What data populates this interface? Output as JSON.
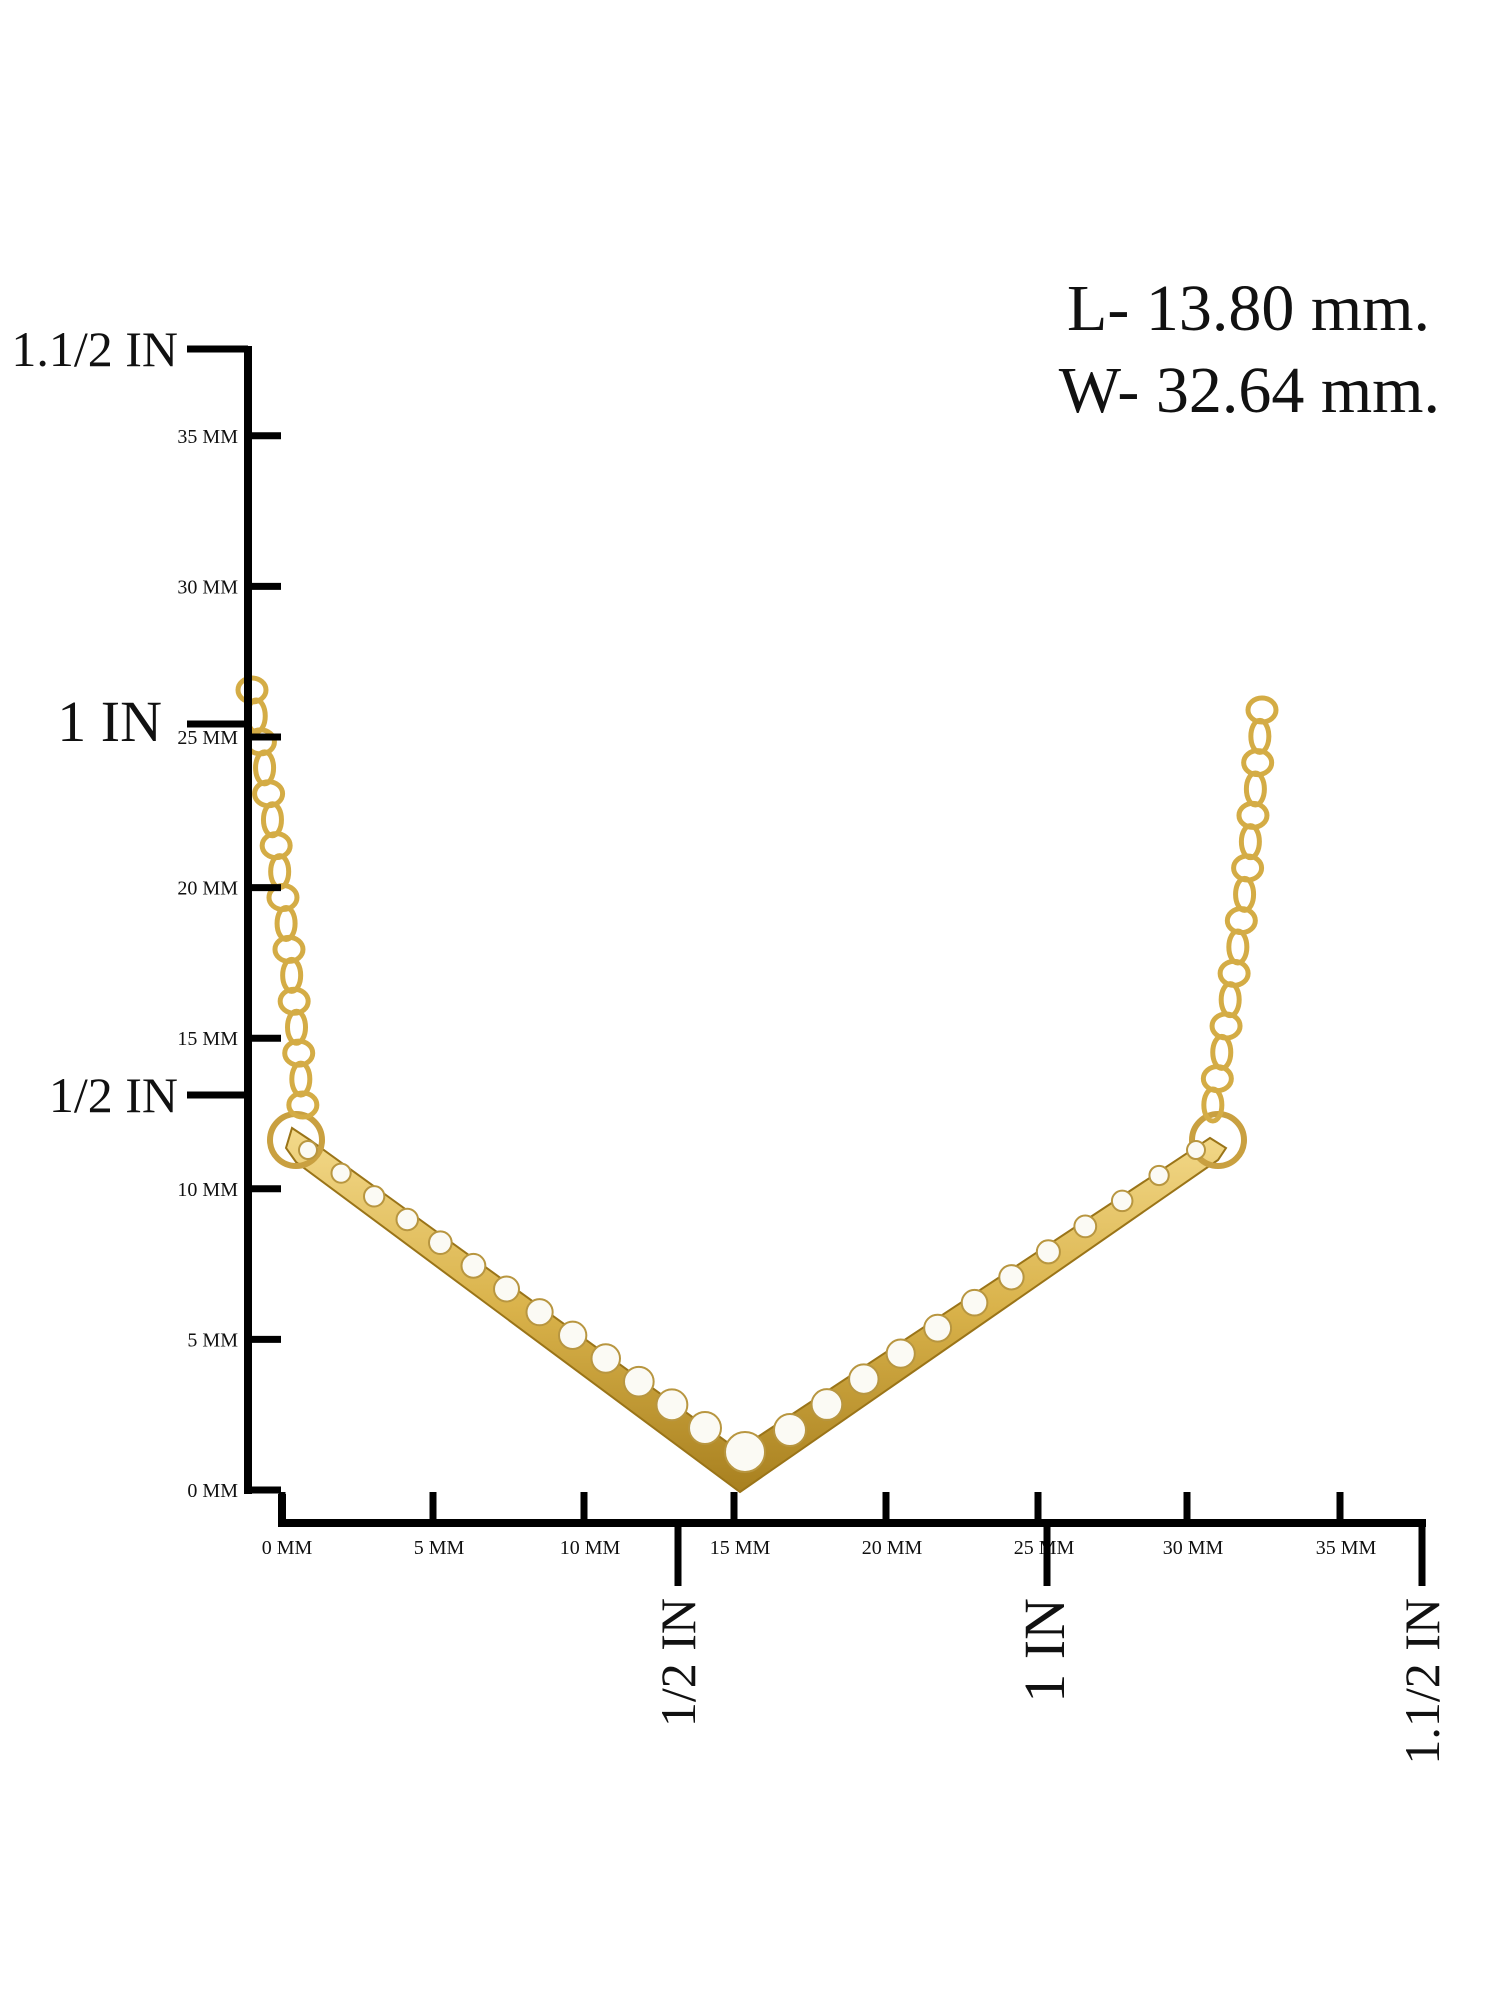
{
  "dimensions": {
    "length": "L- 13.80 mm.",
    "width": "W- 32.64 mm."
  },
  "vertical_ruler": {
    "mm_labels": [
      "0 MM",
      "5 MM",
      "10 MM",
      "15 MM",
      "20 MM",
      "25 MM",
      "30 MM",
      "35 MM"
    ],
    "inch_labels": [
      "1/2 IN",
      "1 IN",
      "1.1/2 IN"
    ]
  },
  "horizontal_ruler": {
    "mm_labels": [
      "0 MM",
      "5 MM",
      "10 MM",
      "15 MM",
      "20 MM",
      "25 MM",
      "30 MM",
      "35 MM"
    ],
    "inch_labels": [
      "1/2 IN",
      "1 IN",
      "1.1/2 IN"
    ]
  }
}
